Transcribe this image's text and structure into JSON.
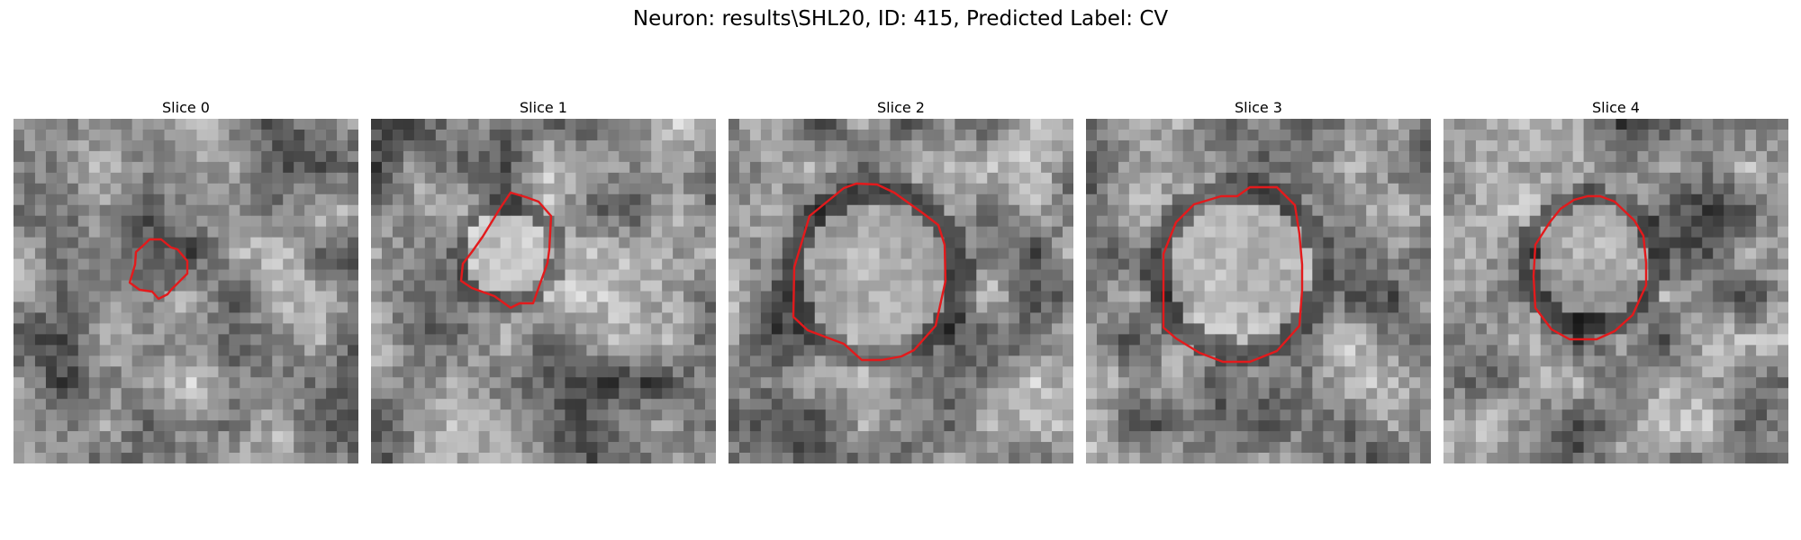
{
  "title": "Neuron: results\\SHL20, ID: 415, Predicted Label: CV",
  "contour_color": "#e31a1c",
  "colormap": "gray",
  "panels": [
    {
      "title": "Slice 0",
      "seed": 11,
      "center_brightness": 0.35,
      "ring_darkness": 0.05
    },
    {
      "title": "Slice 1",
      "seed": 23,
      "center_brightness": 0.85,
      "ring_darkness": 0.35
    },
    {
      "title": "Slice 2",
      "seed": 37,
      "center_brightness": 0.72,
      "ring_darkness": 0.4
    },
    {
      "title": "Slice 3",
      "seed": 49,
      "center_brightness": 0.8,
      "ring_darkness": 0.4
    },
    {
      "title": "Slice 4",
      "seed": 61,
      "center_brightness": 0.7,
      "ring_darkness": 0.45
    }
  ]
}
